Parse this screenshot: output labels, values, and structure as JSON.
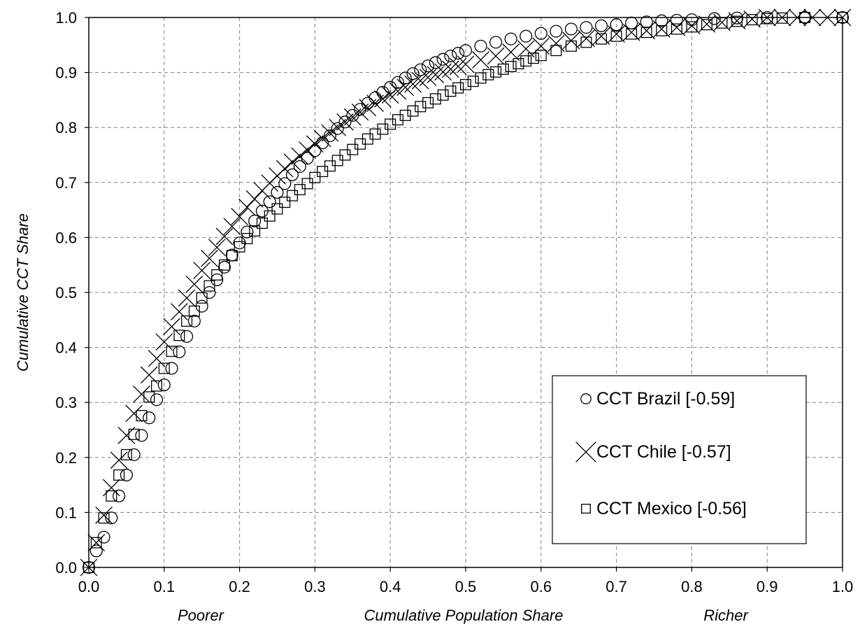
{
  "chart_data": {
    "type": "scatter",
    "title": "",
    "xlabel": "Cumulative Population Share",
    "xlabel_left": "Poorer",
    "xlabel_right": "Richer",
    "ylabel": "Cumulative CCT Share",
    "xlim": [
      0,
      1
    ],
    "ylim": [
      0,
      1
    ],
    "x_ticks": [
      "0.0",
      "0.1",
      "0.2",
      "0.3",
      "0.4",
      "0.5",
      "0.6",
      "0.7",
      "0.8",
      "0.9",
      "1.0"
    ],
    "y_ticks": [
      "0.0",
      "0.1",
      "0.2",
      "0.3",
      "0.4",
      "0.5",
      "0.6",
      "0.7",
      "0.8",
      "0.9",
      "1.0"
    ],
    "grid": true,
    "legend_position": "bottom-right",
    "series": [
      {
        "name": "CCT Brazil [-0.59]",
        "marker": "circle",
        "points": [
          [
            0,
            0
          ],
          [
            0.01,
            0.03
          ],
          [
            0.02,
            0.055
          ],
          [
            0.03,
            0.09
          ],
          [
            0.04,
            0.13
          ],
          [
            0.05,
            0.168
          ],
          [
            0.06,
            0.205
          ],
          [
            0.07,
            0.24
          ],
          [
            0.08,
            0.272
          ],
          [
            0.09,
            0.305
          ],
          [
            0.1,
            0.332
          ],
          [
            0.11,
            0.362
          ],
          [
            0.12,
            0.392
          ],
          [
            0.13,
            0.42
          ],
          [
            0.14,
            0.448
          ],
          [
            0.15,
            0.475
          ],
          [
            0.16,
            0.5
          ],
          [
            0.17,
            0.523
          ],
          [
            0.18,
            0.546
          ],
          [
            0.19,
            0.568
          ],
          [
            0.2,
            0.59
          ],
          [
            0.21,
            0.61
          ],
          [
            0.22,
            0.63
          ],
          [
            0.23,
            0.648
          ],
          [
            0.24,
            0.665
          ],
          [
            0.25,
            0.682
          ],
          [
            0.26,
            0.698
          ],
          [
            0.27,
            0.714
          ],
          [
            0.28,
            0.729
          ],
          [
            0.29,
            0.744
          ],
          [
            0.3,
            0.758
          ],
          [
            0.31,
            0.772
          ],
          [
            0.32,
            0.785
          ],
          [
            0.33,
            0.798
          ],
          [
            0.34,
            0.81
          ],
          [
            0.35,
            0.822
          ],
          [
            0.36,
            0.833
          ],
          [
            0.37,
            0.844
          ],
          [
            0.38,
            0.854
          ],
          [
            0.39,
            0.864
          ],
          [
            0.4,
            0.873
          ],
          [
            0.41,
            0.882
          ],
          [
            0.42,
            0.89
          ],
          [
            0.43,
            0.898
          ],
          [
            0.44,
            0.905
          ],
          [
            0.45,
            0.912
          ],
          [
            0.46,
            0.918
          ],
          [
            0.47,
            0.924
          ],
          [
            0.48,
            0.93
          ],
          [
            0.49,
            0.935
          ],
          [
            0.5,
            0.94
          ],
          [
            0.52,
            0.948
          ],
          [
            0.54,
            0.955
          ],
          [
            0.56,
            0.961
          ],
          [
            0.58,
            0.966
          ],
          [
            0.6,
            0.971
          ],
          [
            0.62,
            0.975
          ],
          [
            0.64,
            0.979
          ],
          [
            0.66,
            0.982
          ],
          [
            0.68,
            0.985
          ],
          [
            0.7,
            0.987
          ],
          [
            0.72,
            0.99
          ],
          [
            0.74,
            0.992
          ],
          [
            0.76,
            0.994
          ],
          [
            0.78,
            0.995
          ],
          [
            0.8,
            0.996
          ],
          [
            0.83,
            0.998
          ],
          [
            0.86,
            0.999
          ],
          [
            0.9,
            1.0
          ],
          [
            0.95,
            1.0
          ],
          [
            1.0,
            1.0
          ]
        ]
      },
      {
        "name": "CCT Chile [-0.57]",
        "marker": "x",
        "points": [
          [
            0,
            0
          ],
          [
            0.01,
            0.045
          ],
          [
            0.02,
            0.095
          ],
          [
            0.03,
            0.145
          ],
          [
            0.04,
            0.195
          ],
          [
            0.05,
            0.24
          ],
          [
            0.06,
            0.28
          ],
          [
            0.07,
            0.315
          ],
          [
            0.08,
            0.35
          ],
          [
            0.09,
            0.38
          ],
          [
            0.1,
            0.41
          ],
          [
            0.11,
            0.438
          ],
          [
            0.12,
            0.465
          ],
          [
            0.13,
            0.49
          ],
          [
            0.14,
            0.515
          ],
          [
            0.15,
            0.54
          ],
          [
            0.16,
            0.562
          ],
          [
            0.17,
            0.582
          ],
          [
            0.18,
            0.602
          ],
          [
            0.19,
            0.62
          ],
          [
            0.2,
            0.638
          ],
          [
            0.21,
            0.655
          ],
          [
            0.22,
            0.67
          ],
          [
            0.23,
            0.685
          ],
          [
            0.24,
            0.699
          ],
          [
            0.25,
            0.712
          ],
          [
            0.26,
            0.725
          ],
          [
            0.27,
            0.737
          ],
          [
            0.28,
            0.748
          ],
          [
            0.29,
            0.759
          ],
          [
            0.3,
            0.77
          ],
          [
            0.31,
            0.78
          ],
          [
            0.32,
            0.79
          ],
          [
            0.33,
            0.8
          ],
          [
            0.34,
            0.81
          ],
          [
            0.35,
            0.819
          ],
          [
            0.36,
            0.828
          ],
          [
            0.37,
            0.836
          ],
          [
            0.38,
            0.844
          ],
          [
            0.39,
            0.852
          ],
          [
            0.4,
            0.859
          ],
          [
            0.41,
            0.866
          ],
          [
            0.42,
            0.873
          ],
          [
            0.43,
            0.879
          ],
          [
            0.44,
            0.885
          ],
          [
            0.45,
            0.891
          ],
          [
            0.46,
            0.896
          ],
          [
            0.47,
            0.901
          ],
          [
            0.48,
            0.906
          ],
          [
            0.49,
            0.911
          ],
          [
            0.5,
            0.915
          ],
          [
            0.52,
            0.923
          ],
          [
            0.54,
            0.93
          ],
          [
            0.56,
            0.937
          ],
          [
            0.58,
            0.943
          ],
          [
            0.6,
            0.948
          ],
          [
            0.62,
            0.953
          ],
          [
            0.64,
            0.958
          ],
          [
            0.66,
            0.962
          ],
          [
            0.68,
            0.966
          ],
          [
            0.7,
            0.97
          ],
          [
            0.72,
            0.973
          ],
          [
            0.74,
            0.976
          ],
          [
            0.76,
            0.979
          ],
          [
            0.78,
            0.982
          ],
          [
            0.8,
            0.985
          ],
          [
            0.82,
            0.988
          ],
          [
            0.84,
            0.991
          ],
          [
            0.86,
            0.994
          ],
          [
            0.88,
            0.997
          ],
          [
            0.9,
            1.0
          ],
          [
            0.92,
            1.0
          ],
          [
            0.94,
            1.0
          ],
          [
            0.96,
            1.0
          ],
          [
            0.98,
            1.0
          ],
          [
            1.0,
            1.0
          ]
        ]
      },
      {
        "name": "CCT Mexico [-0.56]",
        "marker": "square",
        "points": [
          [
            0,
            0
          ],
          [
            0.01,
            0.045
          ],
          [
            0.02,
            0.09
          ],
          [
            0.03,
            0.13
          ],
          [
            0.04,
            0.168
          ],
          [
            0.05,
            0.205
          ],
          [
            0.06,
            0.242
          ],
          [
            0.07,
            0.276
          ],
          [
            0.08,
            0.31
          ],
          [
            0.09,
            0.33
          ],
          [
            0.1,
            0.362
          ],
          [
            0.11,
            0.393
          ],
          [
            0.12,
            0.422
          ],
          [
            0.13,
            0.448
          ],
          [
            0.14,
            0.466
          ],
          [
            0.15,
            0.49
          ],
          [
            0.16,
            0.512
          ],
          [
            0.17,
            0.532
          ],
          [
            0.18,
            0.55
          ],
          [
            0.19,
            0.567
          ],
          [
            0.2,
            0.583
          ],
          [
            0.21,
            0.598
          ],
          [
            0.22,
            0.612
          ],
          [
            0.23,
            0.626
          ],
          [
            0.24,
            0.639
          ],
          [
            0.25,
            0.652
          ],
          [
            0.26,
            0.664
          ],
          [
            0.27,
            0.676
          ],
          [
            0.28,
            0.687
          ],
          [
            0.29,
            0.698
          ],
          [
            0.3,
            0.709
          ],
          [
            0.31,
            0.72
          ],
          [
            0.32,
            0.73
          ],
          [
            0.33,
            0.74
          ],
          [
            0.34,
            0.75
          ],
          [
            0.35,
            0.76
          ],
          [
            0.36,
            0.77
          ],
          [
            0.37,
            0.779
          ],
          [
            0.38,
            0.788
          ],
          [
            0.39,
            0.797
          ],
          [
            0.4,
            0.806
          ],
          [
            0.41,
            0.814
          ],
          [
            0.42,
            0.822
          ],
          [
            0.43,
            0.83
          ],
          [
            0.44,
            0.838
          ],
          [
            0.45,
            0.845
          ],
          [
            0.46,
            0.852
          ],
          [
            0.47,
            0.859
          ],
          [
            0.48,
            0.866
          ],
          [
            0.49,
            0.872
          ],
          [
            0.5,
            0.878
          ],
          [
            0.51,
            0.884
          ],
          [
            0.52,
            0.89
          ],
          [
            0.53,
            0.896
          ],
          [
            0.54,
            0.901
          ],
          [
            0.55,
            0.906
          ],
          [
            0.56,
            0.911
          ],
          [
            0.57,
            0.916
          ],
          [
            0.58,
            0.921
          ],
          [
            0.59,
            0.926
          ],
          [
            0.6,
            0.931
          ],
          [
            0.62,
            0.94
          ],
          [
            0.64,
            0.948
          ],
          [
            0.66,
            0.955
          ],
          [
            0.68,
            0.961
          ],
          [
            0.7,
            0.966
          ],
          [
            0.72,
            0.97
          ],
          [
            0.74,
            0.973
          ],
          [
            0.76,
            0.976
          ],
          [
            0.78,
            0.979
          ],
          [
            0.8,
            0.983
          ],
          [
            0.82,
            0.987
          ],
          [
            0.84,
            0.99
          ],
          [
            0.86,
            0.993
          ],
          [
            0.88,
            0.996
          ],
          [
            0.9,
            0.998
          ],
          [
            0.92,
            0.999
          ],
          [
            0.95,
            1.0
          ],
          [
            1.0,
            1.0
          ]
        ]
      }
    ]
  }
}
